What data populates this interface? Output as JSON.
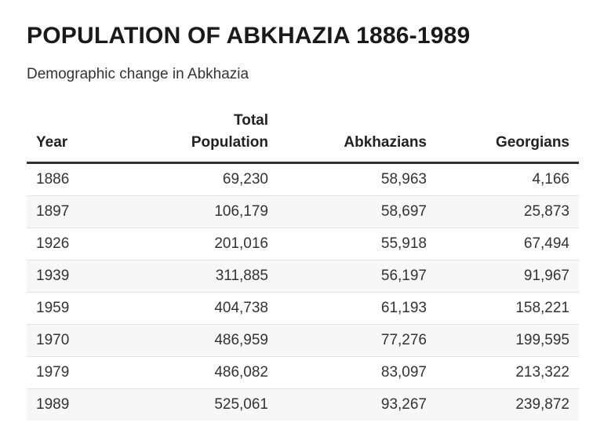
{
  "chart_data": {
    "type": "table",
    "title": "POPULATION OF ABKHAZIA 1886-1989",
    "subtitle": "Demographic change in Abkhazia",
    "columns": [
      "Year",
      "Total\nPopulation",
      "Abkhazians",
      "Georgians"
    ],
    "rows": [
      [
        "1886",
        "69,230",
        "58,963",
        "4,166"
      ],
      [
        "1897",
        "106,179",
        "58,697",
        "25,873"
      ],
      [
        "1926",
        "201,016",
        "55,918",
        "67,494"
      ],
      [
        "1939",
        "311,885",
        "56,197",
        "91,967"
      ],
      [
        "1959",
        "404,738",
        "61,193",
        "158,221"
      ],
      [
        "1970",
        "486,959",
        "77,276",
        "199,595"
      ],
      [
        "1979",
        "486,082",
        "83,097",
        "213,322"
      ],
      [
        "1989",
        "525,061",
        "93,267",
        "239,872"
      ]
    ],
    "colors": {
      "header_rule": "#333333",
      "row_stripe": "#f7f7f7",
      "row_divider": "#e2e2e2"
    }
  }
}
